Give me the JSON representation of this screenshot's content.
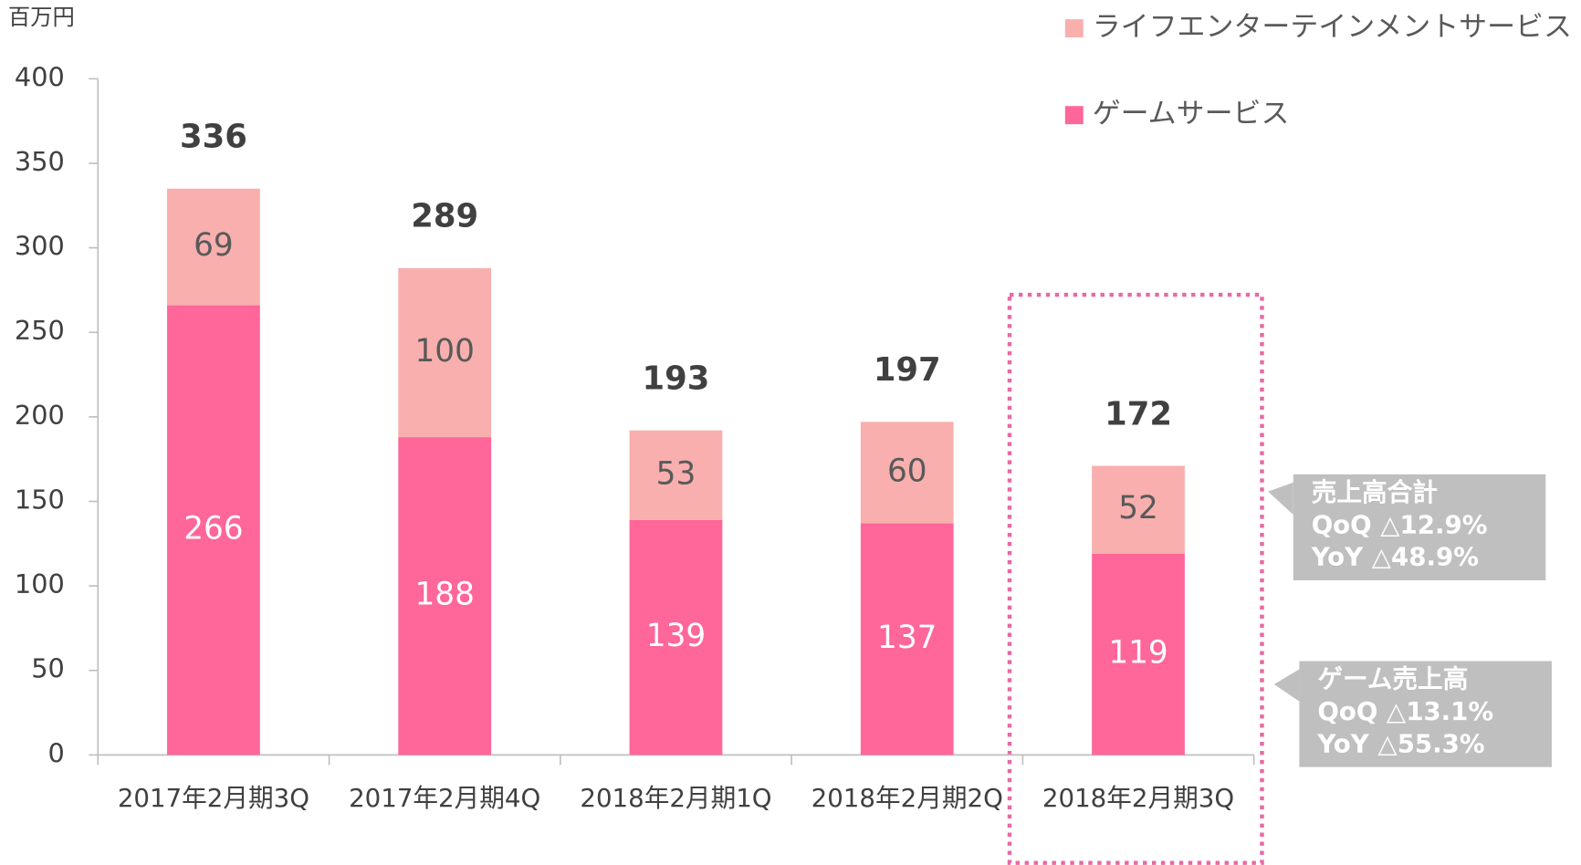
{
  "chart_data": {
    "type": "stacked_bar",
    "y_axis_label": "百万円",
    "categories": [
      "2017年2月期3Q",
      "2017年2月期4Q",
      "2018年2月期1Q",
      "2018年2月期2Q",
      "2018年2月期3Q"
    ],
    "series": [
      {
        "name": "ゲームサービス",
        "color": "#ff6699",
        "values": [
          266,
          188,
          139,
          137,
          119
        ]
      },
      {
        "name": "ライフエンターテインメントサービス",
        "color": "#f8afae",
        "values": [
          69,
          100,
          53,
          60,
          52
        ]
      }
    ],
    "totals": [
      336,
      289,
      193,
      197,
      172
    ],
    "ylim": [
      0,
      400
    ],
    "yticks": [
      0,
      50,
      100,
      150,
      200,
      250,
      300,
      350,
      400
    ],
    "annotations": [
      {
        "lines": [
          "売上高合計",
          "QoQ △12.9%",
          "YoY  △48.9%"
        ]
      },
      {
        "lines": [
          "ゲーム売上高",
          "QoQ △13.1%",
          "YoY  △55.3%"
        ]
      }
    ]
  }
}
